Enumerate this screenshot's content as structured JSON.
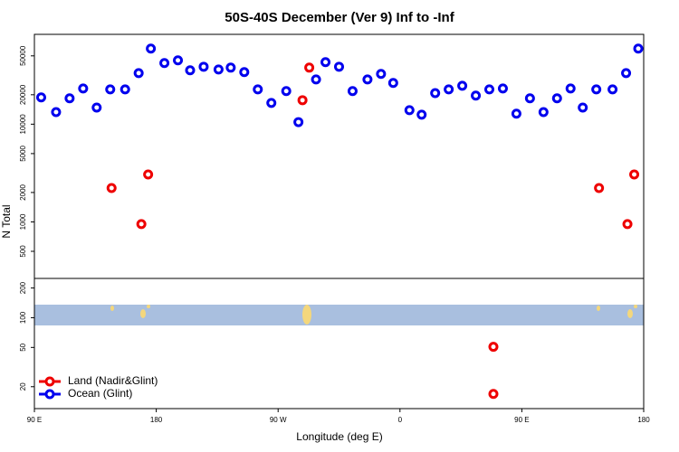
{
  "chart_data": [
    {
      "type": "scatter",
      "title": "50S-40S December (Ver 9)   Inf to -Inf",
      "y_label": "N Total",
      "log_y": true,
      "xlim": [
        90,
        540
      ],
      "ylim": [
        264,
        83000
      ],
      "yticks": [
        500,
        1000,
        2000,
        5000,
        10000,
        20000,
        50000
      ],
      "series": [
        {
          "name": "Ocean (Glint)",
          "color": "#0000ee",
          "x": [
            95,
            106,
            116,
            126,
            136,
            146,
            157,
            167,
            176,
            186,
            196,
            205,
            215,
            226,
            235,
            245,
            255,
            265,
            276,
            285,
            298,
            305,
            315,
            325,
            336,
            346,
            355,
            367,
            376,
            386,
            396,
            406,
            416,
            426,
            436,
            446,
            456,
            466,
            476,
            486,
            495,
            505,
            517,
            527,
            536
          ],
          "values": [
            18800,
            13300,
            18400,
            23200,
            14800,
            22700,
            22700,
            33300,
            59300,
            42200,
            45000,
            35600,
            38700,
            36300,
            37900,
            34100,
            22700,
            16500,
            21800,
            10500,
            28700,
            43100,
            38700,
            21800,
            28700,
            32700,
            26400,
            13900,
            12500,
            20800,
            22700,
            24700,
            19600,
            22700,
            23200,
            12800,
            18400,
            13300,
            18400,
            23200,
            14800,
            22700,
            22700,
            33300,
            59300
          ]
        },
        {
          "name": "Land (Nadir&Glint)",
          "color": "#ee0000",
          "x": [
            147,
            169,
            174,
            288,
            293,
            507,
            528,
            533
          ],
          "values": [
            2220,
            950,
            3060,
            17600,
            37900,
            2220,
            950,
            3060
          ]
        }
      ]
    },
    {
      "type": "scatter",
      "x_label": "Longitude (deg E)",
      "log_y": true,
      "xlim": [
        90,
        540
      ],
      "ylim": [
        12,
        250
      ],
      "xticks": [
        {
          "value": 90,
          "label": "90 E"
        },
        180,
        {
          "value": 270,
          "label": "90 W"
        },
        {
          "value": 360,
          "label": "0"
        },
        {
          "value": 450,
          "label": "90 E"
        },
        {
          "value": 540,
          "label": "180"
        }
      ],
      "yticks": [
        20,
        50,
        100,
        200
      ],
      "legend": "lower left",
      "series": [
        {
          "name": "Land (Nadir&Glint)",
          "color": "#ee0000",
          "x": [
            429,
            429
          ],
          "values": [
            50.7,
            16.9
          ]
        },
        {
          "name": "Ocean (Glint)",
          "color": "#0000ee",
          "x": [],
          "values": []
        }
      ]
    }
  ]
}
